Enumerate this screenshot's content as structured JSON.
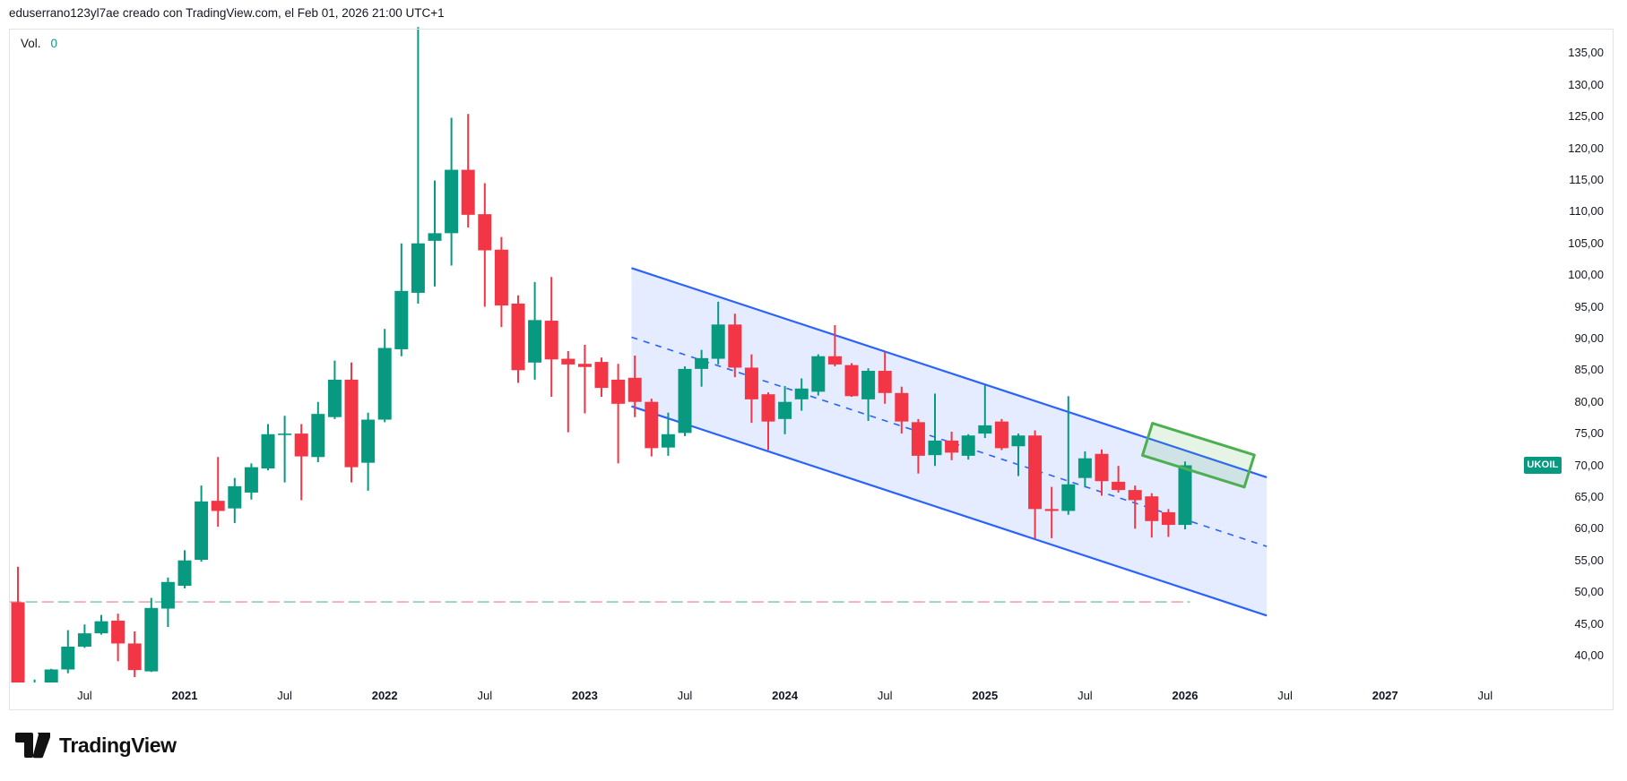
{
  "header": {
    "attribution": "eduserrano123yl7ae creado con TradingView.com, el Feb 01, 2026 21:00 UTC+1"
  },
  "pane": {
    "volume_label": "Vol.",
    "volume_value": "0",
    "volume_value_color": "#089981"
  },
  "price_scale": {
    "side": "right",
    "ticks": [
      {
        "value": 135,
        "label": "135,00"
      },
      {
        "value": 130,
        "label": "130,00"
      },
      {
        "value": 125,
        "label": "125,00"
      },
      {
        "value": 120,
        "label": "120,00"
      },
      {
        "value": 115,
        "label": "115,00"
      },
      {
        "value": 110,
        "label": "110,00"
      },
      {
        "value": 105,
        "label": "105,00"
      },
      {
        "value": 100,
        "label": "100,00"
      },
      {
        "value": 95,
        "label": "95,00"
      },
      {
        "value": 90,
        "label": "90,00"
      },
      {
        "value": 85,
        "label": "85,00"
      },
      {
        "value": 80,
        "label": "80,00"
      },
      {
        "value": 75,
        "label": "75,00"
      },
      {
        "value": 70,
        "label": "70,00"
      },
      {
        "value": 65,
        "label": "65,00"
      },
      {
        "value": 60,
        "label": "60,00"
      },
      {
        "value": 55,
        "label": "55,00"
      },
      {
        "value": 50,
        "label": "50,00"
      },
      {
        "value": 45,
        "label": "45,00"
      },
      {
        "value": 40,
        "label": "40,00"
      }
    ]
  },
  "time_scale": {
    "labels": [
      {
        "text": "Jul",
        "month_index": 4,
        "bold": false
      },
      {
        "text": "2021",
        "month_index": 10,
        "bold": true
      },
      {
        "text": "Jul",
        "month_index": 16,
        "bold": false
      },
      {
        "text": "2022",
        "month_index": 22,
        "bold": true
      },
      {
        "text": "Jul",
        "month_index": 28,
        "bold": false
      },
      {
        "text": "2023",
        "month_index": 34,
        "bold": true
      },
      {
        "text": "Jul",
        "month_index": 40,
        "bold": false
      },
      {
        "text": "2024",
        "month_index": 46,
        "bold": true
      },
      {
        "text": "Jul",
        "month_index": 52,
        "bold": false
      },
      {
        "text": "2025",
        "month_index": 58,
        "bold": true
      },
      {
        "text": "Jul",
        "month_index": 64,
        "bold": false
      },
      {
        "text": "2026",
        "month_index": 70,
        "bold": true
      },
      {
        "text": "Jul",
        "month_index": 76,
        "bold": false
      },
      {
        "text": "2027",
        "month_index": 82,
        "bold": true
      },
      {
        "text": "Jul",
        "month_index": 88,
        "bold": false
      }
    ]
  },
  "symbol_badge": {
    "text": "UKOIL",
    "price": 70.0,
    "color": "#089981"
  },
  "footer": {
    "brand": "TradingView"
  },
  "chart_data": {
    "type": "candlestick",
    "symbol": "UKOIL",
    "timeframe": "1 month",
    "title": "UKOIL monthly candles with descending parallel channel",
    "up_color": "#089981",
    "down_color": "#f23645",
    "y_axis": {
      "visible_min": 35.8,
      "visible_max": 139.0,
      "tick_step": 5,
      "label_format": "comma-decimal"
    },
    "x_axis": {
      "first_candle": "2020-03",
      "last_candle": "2026-01",
      "scale_extends_to": "2028"
    },
    "grid": false,
    "candles_format": [
      "month",
      "open",
      "high",
      "low",
      "close"
    ],
    "candles": [
      [
        "2020-03",
        48.4,
        54.0,
        21.7,
        22.7
      ],
      [
        "2020-04",
        22.7,
        36.2,
        16.0,
        25.3
      ],
      [
        "2020-05",
        25.3,
        37.9,
        25.0,
        37.8
      ],
      [
        "2020-06",
        37.8,
        44.0,
        37.2,
        41.4
      ],
      [
        "2020-07",
        41.4,
        44.9,
        41.2,
        43.5
      ],
      [
        "2020-08",
        43.5,
        46.4,
        43.3,
        45.4
      ],
      [
        "2020-09",
        45.5,
        46.6,
        39.1,
        41.9
      ],
      [
        "2020-10",
        41.9,
        43.8,
        36.6,
        37.7
      ],
      [
        "2020-11",
        37.5,
        49.1,
        37.4,
        47.5
      ],
      [
        "2020-12",
        47.4,
        52.3,
        44.5,
        51.6
      ],
      [
        "2021-01",
        51.0,
        56.6,
        50.6,
        55.0
      ],
      [
        "2021-02",
        55.1,
        66.8,
        54.8,
        64.3
      ],
      [
        "2021-03",
        64.4,
        71.3,
        60.3,
        62.8
      ],
      [
        "2021-04",
        63.2,
        68.0,
        60.9,
        66.7
      ],
      [
        "2021-05",
        65.7,
        70.3,
        64.6,
        69.7
      ],
      [
        "2021-06",
        69.5,
        76.5,
        69.2,
        74.9
      ],
      [
        "2021-07",
        74.8,
        77.8,
        67.3,
        75.0
      ],
      [
        "2021-08",
        75.0,
        76.5,
        64.5,
        71.4
      ],
      [
        "2021-09",
        71.3,
        80.0,
        70.5,
        78.1
      ],
      [
        "2021-10",
        77.6,
        86.5,
        77.3,
        83.5
      ],
      [
        "2021-11",
        83.5,
        86.2,
        67.3,
        69.7
      ],
      [
        "2021-12",
        70.4,
        78.3,
        66.0,
        77.2
      ],
      [
        "2022-01",
        77.2,
        91.5,
        76.8,
        88.5
      ],
      [
        "2022-02",
        88.3,
        105.0,
        87.2,
        97.5
      ],
      [
        "2022-03",
        97.2,
        139.1,
        95.5,
        105.0
      ],
      [
        "2022-04",
        105.4,
        114.9,
        98.2,
        106.6
      ],
      [
        "2022-05",
        106.6,
        124.8,
        101.5,
        116.6
      ],
      [
        "2022-06",
        116.6,
        125.4,
        107.5,
        109.5
      ],
      [
        "2022-07",
        109.6,
        114.5,
        95.0,
        103.9
      ],
      [
        "2022-08",
        104.0,
        106.0,
        91.8,
        95.2
      ],
      [
        "2022-09",
        95.5,
        96.8,
        83.0,
        85.0
      ],
      [
        "2022-10",
        86.2,
        98.9,
        83.5,
        92.9
      ],
      [
        "2022-11",
        92.8,
        99.7,
        80.8,
        86.7
      ],
      [
        "2022-12",
        86.8,
        88.0,
        75.2,
        85.9
      ],
      [
        "2023-01",
        86.0,
        89.0,
        78.2,
        85.5
      ],
      [
        "2023-02",
        86.3,
        87.0,
        80.8,
        82.2
      ],
      [
        "2023-03",
        83.5,
        86.0,
        70.3,
        79.7
      ],
      [
        "2023-04",
        83.8,
        87.3,
        77.6,
        80.0
      ],
      [
        "2023-05",
        80.0,
        80.5,
        71.4,
        72.7
      ],
      [
        "2023-06",
        72.8,
        78.3,
        71.5,
        74.9
      ],
      [
        "2023-07",
        75.1,
        85.6,
        74.6,
        85.2
      ],
      [
        "2023-08",
        85.2,
        88.2,
        82.4,
        86.9
      ],
      [
        "2023-09",
        86.8,
        95.8,
        85.9,
        92.2
      ],
      [
        "2023-10",
        92.2,
        93.9,
        83.9,
        85.4
      ],
      [
        "2023-11",
        85.4,
        87.5,
        76.7,
        80.4
      ],
      [
        "2023-12",
        81.2,
        81.5,
        72.4,
        76.9
      ],
      [
        "2024-01",
        77.3,
        82.5,
        74.9,
        80.0
      ],
      [
        "2024-02",
        80.4,
        83.7,
        78.6,
        82.1
      ],
      [
        "2024-03",
        81.6,
        87.5,
        81.0,
        87.2
      ],
      [
        "2024-04",
        87.2,
        92.1,
        85.6,
        85.9
      ],
      [
        "2024-05",
        85.8,
        86.1,
        80.8,
        80.9
      ],
      [
        "2024-06",
        80.4,
        85.3,
        77.0,
        84.9
      ],
      [
        "2024-07",
        84.9,
        87.9,
        79.7,
        81.4
      ],
      [
        "2024-08",
        81.4,
        82.4,
        75.0,
        76.9
      ],
      [
        "2024-09",
        76.8,
        77.3,
        68.7,
        71.5
      ],
      [
        "2024-10",
        71.6,
        81.3,
        69.9,
        73.9
      ],
      [
        "2024-11",
        73.9,
        75.3,
        70.8,
        72.0
      ],
      [
        "2024-12",
        71.5,
        74.9,
        70.9,
        74.7
      ],
      [
        "2025-01",
        75.0,
        82.6,
        74.3,
        76.3
      ],
      [
        "2025-02",
        76.9,
        77.3,
        72.4,
        72.7
      ],
      [
        "2025-03",
        73.0,
        75.0,
        68.3,
        74.7
      ],
      [
        "2025-04",
        74.7,
        75.5,
        58.4,
        63.1
      ],
      [
        "2025-05",
        63.1,
        66.6,
        58.5,
        62.8
      ],
      [
        "2025-06",
        62.8,
        80.9,
        62.2,
        67.0
      ],
      [
        "2025-07",
        68.0,
        72.2,
        66.5,
        71.1
      ],
      [
        "2025-08",
        71.8,
        72.5,
        65.2,
        67.5
      ],
      [
        "2025-09",
        67.4,
        69.9,
        65.7,
        66.1
      ],
      [
        "2025-10",
        66.1,
        66.8,
        60.0,
        64.5
      ],
      [
        "2025-11",
        65.1,
        65.6,
        58.6,
        61.2
      ],
      [
        "2025-12",
        62.6,
        63.1,
        58.7,
        60.6
      ],
      [
        "2026-01",
        60.6,
        70.6,
        59.9,
        70.0
      ]
    ],
    "annotations": {
      "parallel_channel": {
        "description": "descending parallel channel drawing",
        "start_month_index": 36.8,
        "end_month_index": 74.9,
        "top_price_start": 101.1,
        "top_price_end": 68.1,
        "bottom_price_start": 79.3,
        "bottom_price_end": 46.3,
        "midline_dashed": true,
        "line_color": "#2962ff",
        "fill_color": "rgba(41,98,255,0.12)"
      },
      "highlight_box": {
        "description": "rotated green rectangle on upper channel boundary",
        "center_month_index": 70.8,
        "center_price": 71.6,
        "width_months": 6.4,
        "height_price": 5.3,
        "angle_deg": 17.3,
        "stroke_color": "#4caf50",
        "fill_color": "rgba(76,175,80,0.14)"
      },
      "baseline_dashed": {
        "description": "horizontal dashed price line with alternating colors",
        "price": 48.45,
        "start_month_index": -0.5,
        "end_month_index": 70.3,
        "dash_colors": [
          "#efa4ab",
          "#86ccc6"
        ]
      }
    }
  }
}
